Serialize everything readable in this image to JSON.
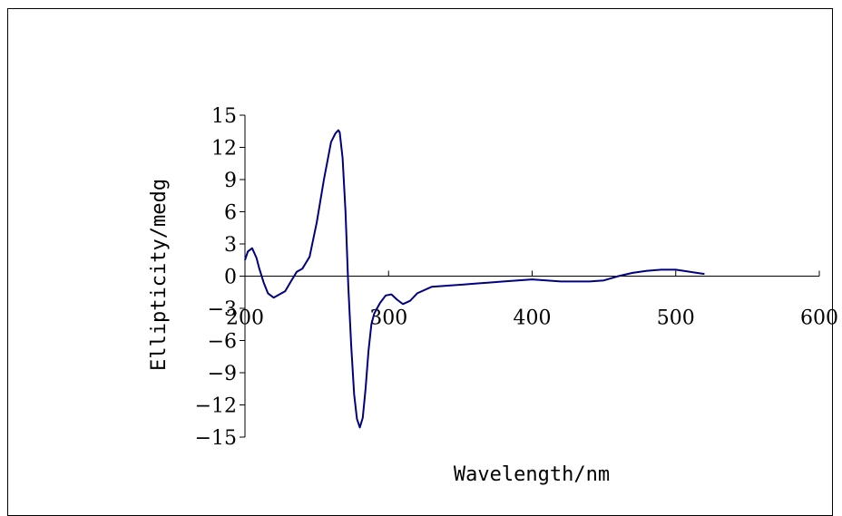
{
  "chart_data": {
    "type": "line",
    "title": "",
    "xlabel": "Wavelength/nm",
    "ylabel": "Ellipticity/medg",
    "xlim": [
      200,
      600
    ],
    "ylim": [
      -15,
      15
    ],
    "x_ticks": [
      200,
      300,
      400,
      500,
      600
    ],
    "y_ticks": [
      15,
      12,
      9,
      6,
      3,
      0,
      -3,
      -6,
      -9,
      -12,
      -15
    ],
    "x_tick_labels": [
      "200",
      "300",
      "400",
      "500",
      "600"
    ],
    "y_tick_labels": [
      "15",
      "12",
      "9",
      "6",
      "3",
      "0",
      "−3",
      "−6",
      "−9",
      "−12",
      "−15"
    ],
    "grid": false,
    "legend": "none",
    "colors": {
      "line": "#000080",
      "axis": "#000000"
    },
    "series": [
      {
        "x": [
          200,
          202,
          205,
          208,
          210,
          213,
          216,
          220,
          224,
          228,
          232,
          236,
          240,
          245,
          250,
          255,
          260,
          263,
          265,
          266,
          268,
          270,
          272,
          274,
          276,
          278,
          280,
          282,
          284,
          286,
          288,
          290,
          294,
          298,
          302,
          306,
          310,
          315,
          320,
          330,
          340,
          350,
          360,
          370,
          380,
          390,
          400,
          410,
          420,
          430,
          440,
          450,
          460,
          470,
          480,
          490,
          500,
          510,
          520
        ],
        "y": [
          1.5,
          2.3,
          2.6,
          1.7,
          0.7,
          -0.6,
          -1.6,
          -2.0,
          -1.7,
          -1.4,
          -0.5,
          0.4,
          0.7,
          1.8,
          5.0,
          9.0,
          12.5,
          13.3,
          13.6,
          13.4,
          11.0,
          6.0,
          -1.0,
          -6.5,
          -11.0,
          -13.3,
          -14.1,
          -13.2,
          -10.5,
          -7.0,
          -4.5,
          -3.5,
          -2.5,
          -1.8,
          -1.7,
          -2.2,
          -2.6,
          -2.3,
          -1.6,
          -1.0,
          -0.9,
          -0.8,
          -0.7,
          -0.6,
          -0.5,
          -0.4,
          -0.3,
          -0.4,
          -0.5,
          -0.5,
          -0.5,
          -0.4,
          0.0,
          0.3,
          0.5,
          0.6,
          0.6,
          0.4,
          0.2
        ]
      }
    ]
  }
}
